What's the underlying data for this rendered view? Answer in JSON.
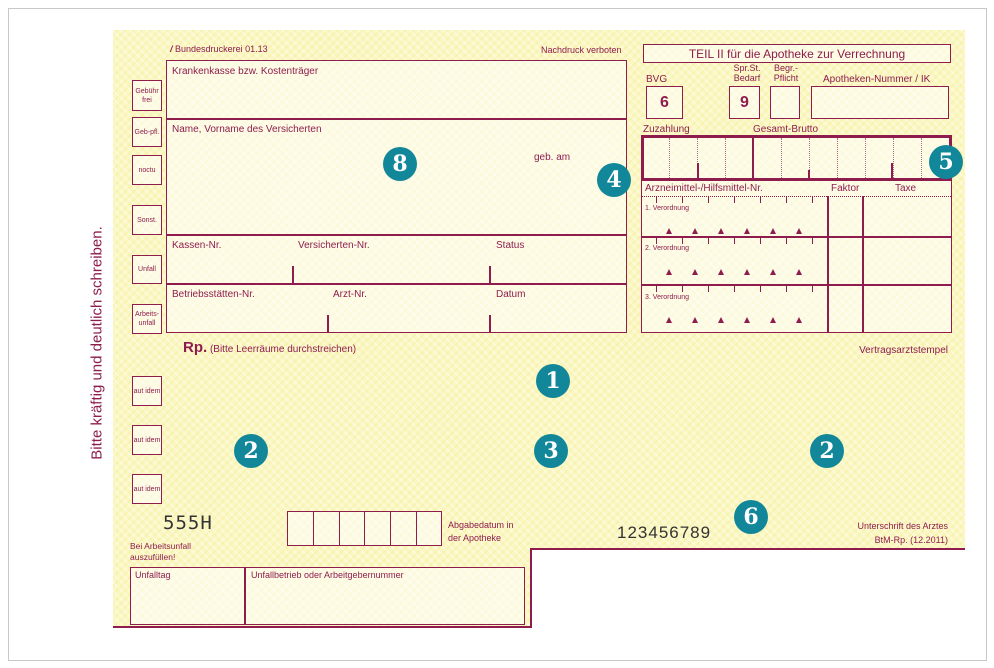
{
  "header": {
    "printer": "Bundesdruckerei 01.13",
    "reprint_note": "Nachdruck verboten"
  },
  "side_text": "Bitte kräftig und deutlich schreiben.",
  "left_boxes": [
    "Gebühr frei",
    "Geb-pfl.",
    "noctu",
    "Sonst.",
    "Unfall",
    "Arbeits-unfall"
  ],
  "aut_idem": [
    "aut idem",
    "aut idem",
    "aut idem"
  ],
  "patient": {
    "insurer": "Krankenkasse bzw. Kostenträger",
    "name": "Name, Vorname des Versicherten",
    "dob": "geb. am",
    "insurer_no": "Kassen-Nr.",
    "insured_no": "Versicherten-Nr.",
    "status": "Status",
    "site_no": "Betriebsstätten-Nr.",
    "doctor_no": "Arzt-Nr.",
    "date": "Datum"
  },
  "rp": {
    "title": "Rp.",
    "note": "(Bitte Leerräume durchstreichen)"
  },
  "pharmacy": {
    "title": "TEIL II für die Apotheke zur Verrechnung",
    "bvg_label": "BVG",
    "bvg_value": "6",
    "spr_label": "Spr.St. Bedarf",
    "spr_value": "9",
    "begr_label": "Begr.-Pflicht",
    "ik_label": "Apotheken-Nummer / IK",
    "copay": "Zuzahlung",
    "gross": "Gesamt-Brutto",
    "drug_no": "Arzneimittel-/Hilfsmittel-Nr.",
    "factor": "Faktor",
    "fee": "Taxe",
    "rows": [
      "1. Verordnung",
      "2. Verordnung",
      "3. Verordnung"
    ]
  },
  "stamp": "Vertragsarztstempel",
  "code": "555H",
  "dispense_date": "Abgabedatum in der Apotheke",
  "serial": "123456789",
  "signature": "Unterschrift des Arztes",
  "form_id": "BtM-Rp. (12.2011)",
  "accident": {
    "note": "Bei Arbeitsunfall auszufüllen!",
    "day": "Unfalltag",
    "employer": "Unfallbetrieb oder Arbeitgebernummer"
  },
  "badges": [
    "1",
    "2",
    "3",
    "2",
    "4",
    "5",
    "6",
    "8"
  ],
  "colors": {
    "ink": "#8e1d4e",
    "paper": "#fbf7c2",
    "badge": "#13879a"
  }
}
